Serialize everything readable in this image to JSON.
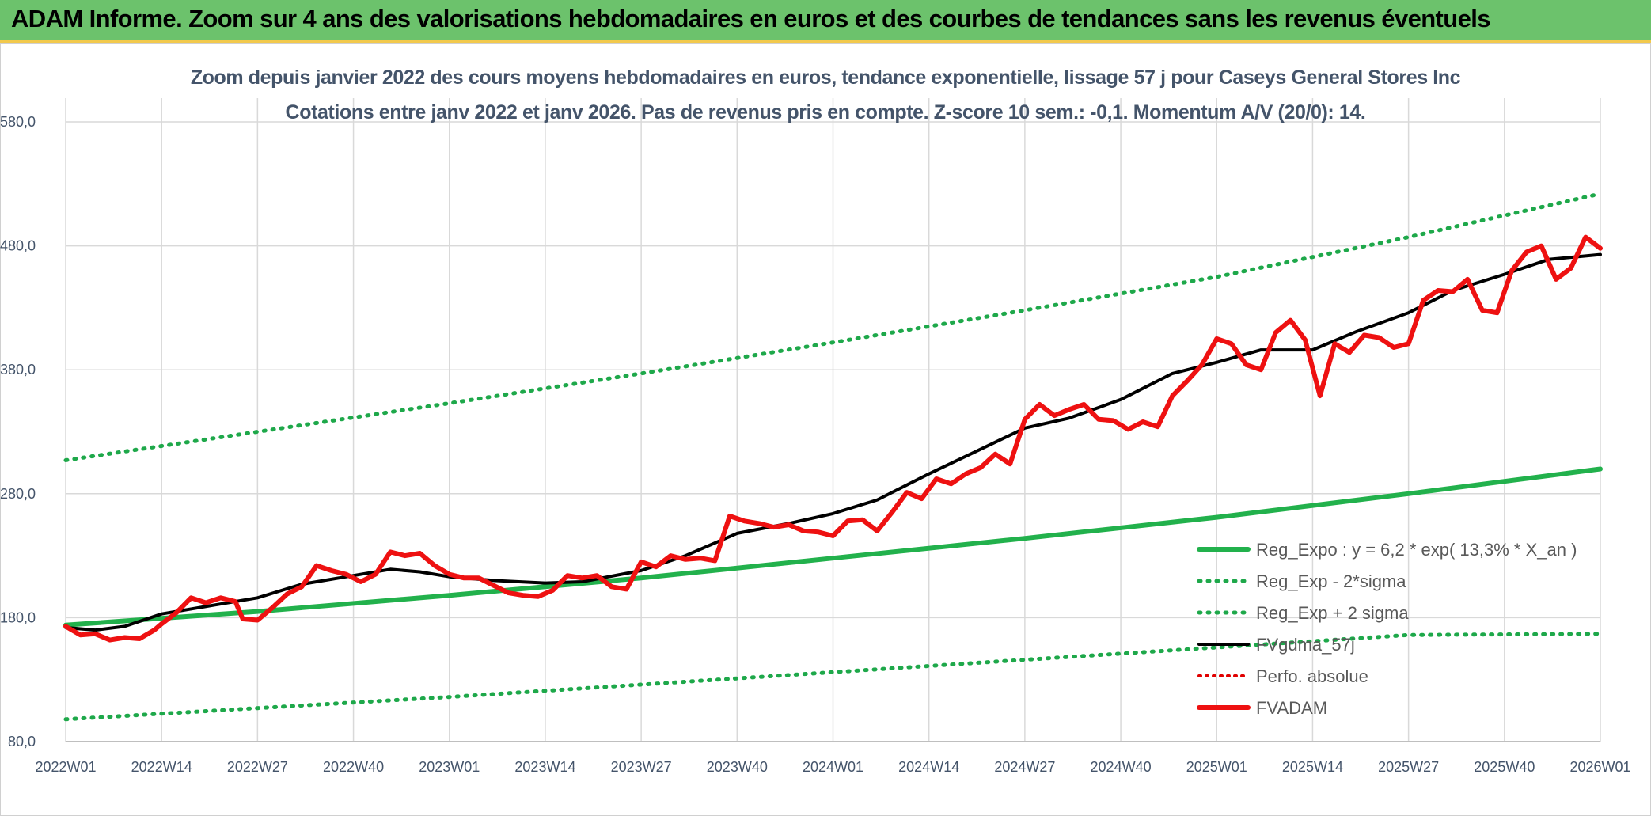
{
  "banner": {
    "title": "ADAM Informe. Zoom sur 4 ans des valorisations hebdomadaires en euros et des courbes de tendances sans les revenus éventuels"
  },
  "colors": {
    "banner_bg": "#6cc26c",
    "reg_expo": "#22b14c",
    "dotted_green": "#1ea84a",
    "fvgdma": "#000000",
    "perfo": "#e00000",
    "fvadam": "#ee1111",
    "grid": "#d9d9d9",
    "text": "#44546a"
  },
  "chart_data": {
    "type": "line",
    "title": "Zoom depuis janvier 2022 des cours moyens hebdomadaires en euros, tendance exponentielle, lissage 57 j pour Caseys General Stores Inc",
    "subtitle": "Cotations entre janv 2022 et janv 2026. Pas de revenus pris en compte. Z-score 10 sem.: -0,1. Momentum A/V (20/0): 14.",
    "xlabel": "",
    "ylabel": "",
    "ylim": [
      80,
      580
    ],
    "y_ticks": [
      "80,0",
      "180,0",
      "280,0",
      "380,0",
      "480,0",
      "580,0"
    ],
    "y_tick_values": [
      80,
      180,
      280,
      380,
      480,
      580
    ],
    "x_ticks": [
      "2022W01",
      "2022W14",
      "2022W27",
      "2022W40",
      "2023W01",
      "2023W14",
      "2023W27",
      "2023W40",
      "2024W01",
      "2024W14",
      "2024W27",
      "2024W40",
      "2025W01",
      "2025W14",
      "2025W27",
      "2025W40",
      "2026W01"
    ],
    "x_tick_weeks": [
      0,
      13,
      26,
      39,
      52,
      65,
      78,
      91,
      104,
      117,
      130,
      143,
      156,
      169,
      182,
      195,
      208
    ],
    "x_range_weeks": [
      0,
      208
    ],
    "grid": true,
    "legend_position": "bottom-right",
    "series": [
      {
        "name": "Reg_Expo : y = 6,2 * exp( 13,3% *  X_an )",
        "style": "solid-thick",
        "x": [
          0,
          26,
          52,
          78,
          104,
          130,
          156,
          182,
          208
        ],
        "values": [
          174,
          185,
          198,
          212,
          228,
          244,
          261,
          280,
          300
        ]
      },
      {
        "name": "Reg_Exp - 2*sigma",
        "style": "dotted",
        "x": [
          0,
          26,
          52,
          78,
          104,
          130,
          156,
          182,
          208
        ],
        "values": [
          98,
          107,
          116,
          126,
          136,
          146,
          156,
          166,
          167
        ]
      },
      {
        "name": "Reg_Exp + 2 sigma",
        "style": "dotted",
        "x": [
          0,
          26,
          52,
          78,
          104,
          130,
          156,
          182,
          208
        ],
        "values": [
          307,
          330,
          353,
          377,
          402,
          428,
          455,
          487,
          522
        ]
      },
      {
        "name": "FVgdma_57j",
        "style": "solid",
        "x": [
          0,
          4,
          8,
          13,
          20,
          26,
          32,
          39,
          44,
          48,
          52,
          58,
          65,
          70,
          78,
          84,
          91,
          98,
          104,
          110,
          117,
          123,
          130,
          136,
          143,
          150,
          156,
          162,
          169,
          175,
          182,
          188,
          195,
          201,
          208
        ],
        "values": [
          172,
          170,
          173,
          183,
          190,
          196,
          207,
          214,
          219,
          217,
          213,
          210,
          208,
          209,
          218,
          230,
          248,
          256,
          264,
          275,
          296,
          313,
          333,
          341,
          356,
          377,
          386,
          396,
          396,
          411,
          426,
          444,
          457,
          469,
          473
        ]
      },
      {
        "name": "Perfo. absolue",
        "style": "dotted",
        "x": [],
        "values": []
      },
      {
        "name": "FVADAM",
        "style": "solid-thick",
        "x": [
          0,
          2,
          4,
          6,
          8,
          10,
          12,
          13,
          15,
          17,
          19,
          21,
          23,
          24,
          26,
          28,
          30,
          32,
          34,
          36,
          38,
          40,
          42,
          44,
          46,
          48,
          50,
          52,
          54,
          56,
          58,
          60,
          62,
          64,
          66,
          68,
          70,
          72,
          74,
          76,
          78,
          80,
          82,
          84,
          86,
          88,
          90,
          92,
          94,
          96,
          98,
          100,
          102,
          104,
          106,
          108,
          110,
          112,
          114,
          116,
          118,
          120,
          122,
          124,
          126,
          128,
          130,
          132,
          134,
          136,
          138,
          140,
          142,
          144,
          146,
          148,
          150,
          152,
          154,
          156,
          158,
          160,
          162,
          164,
          166,
          168,
          170,
          172,
          174,
          176,
          178,
          180,
          182,
          184,
          186,
          188,
          190,
          192,
          194,
          196,
          198,
          200,
          202,
          204,
          206,
          208
        ],
        "values": [
          173,
          166,
          167,
          162,
          164,
          163,
          170,
          175,
          184,
          196,
          192,
          196,
          193,
          179,
          178,
          188,
          199,
          205,
          222,
          218,
          215,
          209,
          215,
          233,
          230,
          232,
          222,
          215,
          212,
          212,
          206,
          200,
          198,
          197,
          202,
          214,
          212,
          214,
          205,
          203,
          225,
          221,
          230,
          227,
          228,
          226,
          262,
          258,
          256,
          253,
          255,
          250,
          249,
          246,
          258,
          259,
          250,
          265,
          281,
          276,
          292,
          288,
          296,
          301,
          312,
          304,
          340,
          352,
          343,
          348,
          352,
          340,
          339,
          332,
          338,
          334,
          359,
          371,
          384,
          405,
          401,
          384,
          380,
          410,
          420,
          404,
          359,
          401,
          394,
          408,
          406,
          398,
          401,
          436,
          444,
          443,
          453,
          428,
          426,
          460,
          475,
          480,
          453,
          462,
          487,
          478
        ]
      }
    ]
  },
  "legend": {
    "items": [
      "Reg_Expo : y = 6,2 * exp( 13,3% *  X_an )",
      "Reg_Exp - 2*sigma",
      "Reg_Exp + 2 sigma",
      "FVgdma_57j",
      "Perfo. absolue",
      "FVADAM"
    ]
  }
}
